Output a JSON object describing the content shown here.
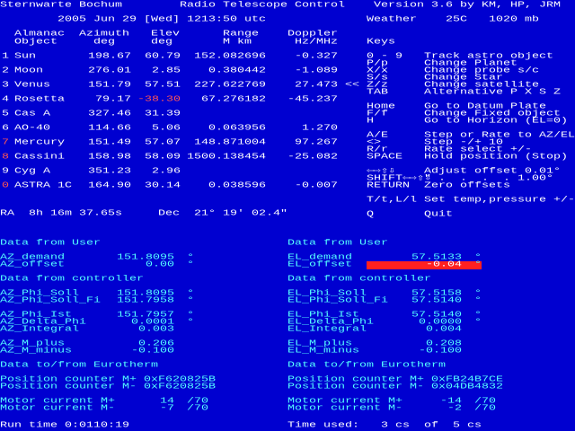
{
  "header": {
    "observatory": "Sternwarte Bochum",
    "program": "Radio Telescope Control",
    "version": "Version 3.6 by KM, HP, JRM",
    "datetime": "2005 Jun 29 [Wed] 1213:50 utc",
    "weather_label": "Weather",
    "temperature": "25C",
    "pressure": "1020 mb"
  },
  "objects": {
    "columns": [
      [
        "Almanac",
        "Object"
      ],
      [
        "Azimuth",
        "deg"
      ],
      [
        "Elev",
        "deg"
      ],
      [
        "Range",
        "M km"
      ],
      [
        "Doppler",
        "Hz/MHz"
      ]
    ],
    "rows": [
      {
        "num": "1",
        "name": "Sun",
        "az": "198.67",
        "el": "60.79",
        "range": "152.082696",
        "doppler": "-0.327"
      },
      {
        "num": "2",
        "name": "Moon",
        "az": "276.01",
        "el": "2.85",
        "range": "0.380442",
        "doppler": "-1.089"
      },
      {
        "num": "3",
        "name": "Venus",
        "az": "151.79",
        "el": "57.51",
        "range": "227.622769",
        "doppler": "27.473",
        "marker": "<<"
      },
      {
        "num": "4",
        "name": "Rosetta",
        "az": "79.17",
        "el": "-38.30",
        "range": "67.276182",
        "doppler": "-45.237"
      },
      {
        "num": "5",
        "name": "Cas A",
        "az": "327.46",
        "el": "31.39"
      },
      {
        "num": "6",
        "name": "AO-40",
        "az": "114.66",
        "el": "5.06",
        "range": "0.063956",
        "doppler": "1.270"
      },
      {
        "num": "7",
        "name": "Mercury",
        "az": "151.49",
        "el": "57.07",
        "range": "148.871004",
        "doppler": "97.267"
      },
      {
        "num": "8",
        "name": "Cassini",
        "az": "158.98",
        "el": "58.09",
        "range": "1500.138454",
        "doppler": "-25.082"
      },
      {
        "num": "9",
        "name": "Cyg A",
        "az": "351.23",
        "el": "2.96"
      },
      {
        "num": "0",
        "name": "ASTRA 1C",
        "az": "164.90",
        "el": "30.14",
        "range": "0.038596",
        "doppler": "-0.007"
      }
    ]
  },
  "position": {
    "ra_label": "RA",
    "ra": "8h 16m 37.65s",
    "dec_label": "Dec",
    "dec": "21° 19' 02.4\""
  },
  "keys": {
    "title": "Keys",
    "groups": [
      [
        [
          "0 - 9",
          "Track astro object"
        ],
        [
          "P/p",
          "Change Planet"
        ],
        [
          "X/x",
          "Change probe s/c"
        ],
        [
          "S/s",
          "Change Star"
        ],
        [
          "Z/z",
          "Change satellite"
        ],
        [
          "TAB",
          "Alternative P X S Z"
        ]
      ],
      [
        [
          "Home",
          "Go to Datum Plate"
        ],
        [
          "F/f",
          "Change Fixed object"
        ],
        [
          "H",
          "Go to Horizon (EL=0)"
        ]
      ],
      [
        [
          "A/E",
          "Step or Rate to AZ/EL"
        ],
        [
          "<>",
          "Step -/+ 10"
        ],
        [
          "R/r",
          "Rate select +/-"
        ],
        [
          "SPACE",
          "Hold position (Stop)"
        ]
      ],
      [
        [
          "⇦⇨⇧⇩",
          "Adjust offset 0.01°"
        ],
        [
          "SHIFT⇦⇨⇧⇩",
          "\" .  .  .  . 1.00°"
        ],
        [
          "RETURN",
          "Zero offsets"
        ]
      ],
      [
        [
          "T/t,L/l",
          "Set temp,pressure +/-"
        ]
      ],
      [
        [
          "Q",
          "Quit"
        ]
      ]
    ]
  },
  "panels": [
    {
      "sections": [
        {
          "title": "Data from User",
          "groups": [
            [
              {
                "label": "AZ_demand",
                "value": "151.8095",
                "unit": "°"
              },
              {
                "label": "AZ_offset",
                "value": "0.00",
                "unit": "°"
              }
            ]
          ]
        },
        {
          "title": "Data from controller",
          "groups": [
            [
              {
                "label": "AZ_Phi_Soll",
                "value": "151.8095",
                "unit": "°"
              },
              {
                "label": "AZ_Phi_Soll_Fi",
                "value": "151.7958",
                "unit": "°"
              }
            ],
            [
              {
                "label": "AZ_Phi_Ist",
                "value": "151.7957",
                "unit": "°"
              },
              {
                "label": "AZ_Delta_Phi",
                "value": "0.0001",
                "unit": "°"
              },
              {
                "label": "AZ_Integral",
                "value": "0.003"
              }
            ],
            [
              {
                "label": "AZ_M_plus",
                "value": "0.206"
              },
              {
                "label": "AZ_M_minus",
                "value": "-0.100"
              }
            ]
          ]
        },
        {
          "title": "Data to/from Eurotherm",
          "groups": [
            [
              {
                "label": "Position counter M+",
                "value": "0xF620825B"
              },
              {
                "label": "Position counter M-",
                "value": "0xF620825B"
              }
            ],
            [
              {
                "label": "Motor current M+",
                "value": "14",
                "unit": "/70"
              },
              {
                "label": "Motor current M-",
                "value": "-7",
                "unit": "/70"
              }
            ]
          ]
        }
      ]
    },
    {
      "sections": [
        {
          "title": "Data from User",
          "groups": [
            [
              {
                "label": "EL_demand",
                "value": "57.5133",
                "unit": "°"
              },
              {
                "label": "EL_offset",
                "value": "-0.04",
                "unit": "°"
              }
            ]
          ]
        },
        {
          "title": "Data from controller",
          "groups": [
            [
              {
                "label": "EL_Phi_Soll",
                "value": "57.5158",
                "unit": "°"
              },
              {
                "label": "EL_Phi_Soll_Fi",
                "value": "57.5140",
                "unit": "°"
              }
            ],
            [
              {
                "label": "EL_Phi_Ist",
                "value": "57.5140",
                "unit": "°"
              },
              {
                "label": "EL_Delta_Phi",
                "value": "0.0000",
                "unit": "°"
              },
              {
                "label": "EL_Integral",
                "value": "0.004"
              }
            ],
            [
              {
                "label": "EL_M_plus",
                "value": "0.208"
              },
              {
                "label": "EL_M_minus",
                "value": "-0.100"
              }
            ]
          ]
        },
        {
          "title": "Data to/from Eurotherm",
          "groups": [
            [
              {
                "label": "Position counter M+",
                "value": "0xFB24B7CE"
              },
              {
                "label": "Position counter M-",
                "value": "0x04DB4832"
              }
            ],
            [
              {
                "label": "Motor current M+",
                "value": "-14",
                "unit": "/70"
              },
              {
                "label": "Motor current M-",
                "value": "-2",
                "unit": "/70"
              }
            ]
          ]
        }
      ]
    }
  ],
  "footer": {
    "run_time": "Run time 0:0110:19",
    "time_used": "Time used:   3 cs  of  5 cs"
  }
}
